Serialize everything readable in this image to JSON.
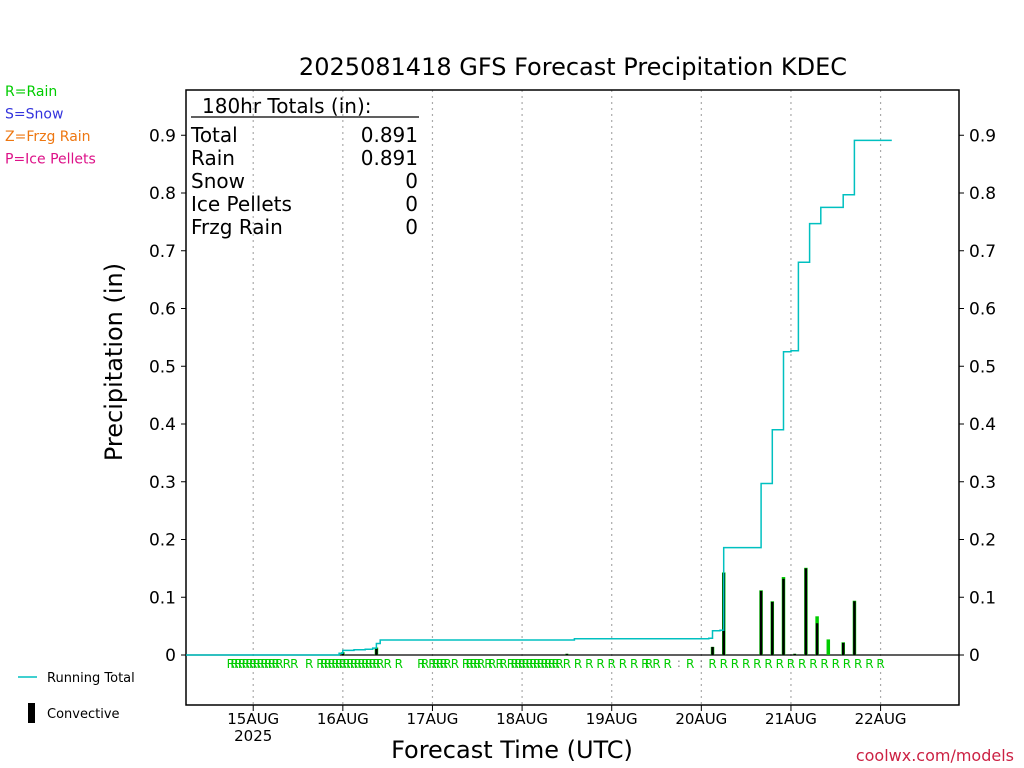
{
  "chart_data": {
    "type": "bar",
    "title": "2025081418 GFS Forecast Precipitation KDEC",
    "xlabel": "Forecast Time (UTC)",
    "ylabel": "Precipitation (in)",
    "ylim": [
      0,
      0.98
    ],
    "y_ticks": [
      0,
      0.1,
      0.2,
      0.3,
      0.4,
      0.5,
      0.6,
      0.7,
      0.8,
      0.9
    ],
    "y_tick_labels": [
      "0",
      "0.1",
      "0.2",
      "0.3",
      "0.4",
      "0.5",
      "0.6",
      "0.7",
      "0.8",
      "0.9"
    ],
    "x_range_hours": [
      -18,
      189
    ],
    "x_ticks": [
      {
        "hour": 0,
        "label": "15AUG",
        "sublabel": "2025"
      },
      {
        "hour": 24,
        "label": "16AUG",
        "sublabel": ""
      },
      {
        "hour": 48,
        "label": "17AUG",
        "sublabel": ""
      },
      {
        "hour": 72,
        "label": "18AUG",
        "sublabel": ""
      },
      {
        "hour": 96,
        "label": "19AUG",
        "sublabel": ""
      },
      {
        "hour": 120,
        "label": "20AUG",
        "sublabel": ""
      },
      {
        "hour": 144,
        "label": "21AUG",
        "sublabel": ""
      },
      {
        "hour": 168,
        "label": "22AUG",
        "sublabel": ""
      }
    ],
    "grid": true,
    "legend_position": "left",
    "type_legend": [
      {
        "label": "R=Rain",
        "color": "#00cc00"
      },
      {
        "label": "S=Snow",
        "color": "#3333dd"
      },
      {
        "label": "Z=Frzg Rain",
        "color": "#ee7711"
      },
      {
        "label": "P=Ice Pellets",
        "color": "#dd1188"
      }
    ],
    "bottom_legend": {
      "running_total_label": "Running Total",
      "convective_label": "Convective",
      "running_total_color": "#00c0c0",
      "convective_color": "#000000"
    },
    "totals_box": {
      "heading": "180hr Totals (in):",
      "rows": [
        {
          "label": "Total",
          "value": "0.891"
        },
        {
          "label": "Rain",
          "value": "0.891"
        },
        {
          "label": "Snow",
          "value": "0"
        },
        {
          "label": "Ice Pellets",
          "value": "0"
        },
        {
          "label": "Frzg Rain",
          "value": "0"
        }
      ]
    },
    "rain_color": "#00cc00",
    "series": [
      {
        "name": "Running Total",
        "color": "#00c0c0",
        "points": [
          [
            -18,
            0
          ],
          [
            22,
            0
          ],
          [
            23,
            0.003
          ],
          [
            24,
            0.008
          ],
          [
            27,
            0.009
          ],
          [
            30,
            0.01
          ],
          [
            32,
            0.012
          ],
          [
            33,
            0.02
          ],
          [
            34,
            0.026
          ],
          [
            60,
            0.026
          ],
          [
            84,
            0.026
          ],
          [
            86,
            0.028
          ],
          [
            110,
            0.028
          ],
          [
            122,
            0.029
          ],
          [
            123,
            0.042
          ],
          [
            125,
            0.043
          ],
          [
            126,
            0.186
          ],
          [
            135,
            0.186
          ],
          [
            136,
            0.297
          ],
          [
            138,
            0.297
          ],
          [
            139,
            0.39
          ],
          [
            141,
            0.39
          ],
          [
            142,
            0.525
          ],
          [
            144,
            0.527
          ],
          [
            145,
            0.527
          ],
          [
            146,
            0.68
          ],
          [
            148,
            0.68
          ],
          [
            149,
            0.747
          ],
          [
            151,
            0.747
          ],
          [
            152,
            0.775
          ],
          [
            157,
            0.775
          ],
          [
            158,
            0.797
          ],
          [
            160,
            0.797
          ],
          [
            161,
            0.891
          ],
          [
            171,
            0.891
          ]
        ]
      },
      {
        "name": "Rain",
        "type": "bar",
        "bars": [
          {
            "hour": 24,
            "total": 0.005,
            "convective": 0.004
          },
          {
            "hour": 33,
            "total": 0.013,
            "convective": 0.011
          },
          {
            "hour": 84,
            "total": 0.002,
            "convective": 0.002
          },
          {
            "hour": 123,
            "total": 0.014,
            "convective": 0.014
          },
          {
            "hour": 126,
            "total": 0.143,
            "convective": 0.142
          },
          {
            "hour": 136,
            "total": 0.112,
            "convective": 0.111
          },
          {
            "hour": 139,
            "total": 0.093,
            "convective": 0.092
          },
          {
            "hour": 142,
            "total": 0.135,
            "convective": 0.132
          },
          {
            "hour": 145,
            "total": 0.002,
            "convective": 0.002
          },
          {
            "hour": 148,
            "total": 0.151,
            "convective": 0.15
          },
          {
            "hour": 151,
            "total": 0.067,
            "convective": 0.055
          },
          {
            "hour": 154,
            "total": 0.027,
            "convective": 0
          },
          {
            "hour": 158,
            "total": 0.022,
            "convective": 0.021
          },
          {
            "hour": 161,
            "total": 0.094,
            "convective": 0.093
          }
        ]
      }
    ],
    "type_markers": {
      "rain_hours": [
        -6,
        -5,
        -4,
        -3,
        -2,
        -1,
        0,
        1,
        2,
        3,
        4,
        5,
        6,
        7,
        9,
        11,
        15,
        18,
        19,
        20,
        21,
        22,
        23,
        24,
        25,
        26,
        27,
        28,
        29,
        30,
        31,
        32,
        33,
        34,
        36,
        39,
        45,
        46,
        48,
        49,
        50,
        51,
        52,
        54,
        57,
        58,
        59,
        60,
        61,
        63,
        64,
        66,
        67,
        69,
        70,
        71,
        72,
        73,
        74,
        75,
        76,
        77,
        78,
        79,
        80,
        81,
        82,
        84,
        87,
        90,
        93,
        96,
        99,
        102,
        105,
        106,
        108,
        111,
        117,
        123,
        126,
        129,
        132,
        135,
        138,
        141,
        144,
        147,
        150,
        153,
        156,
        159,
        162,
        165,
        168
      ],
      "marker_label": "R",
      "dot_hours": [
        114,
        120
      ]
    }
  },
  "watermark": "coolwx.com/models"
}
